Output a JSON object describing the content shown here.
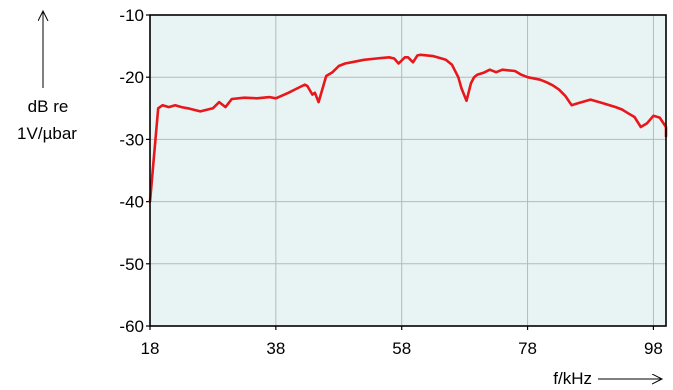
{
  "chart_data": {
    "type": "line",
    "ylabel_line1": "dB re",
    "ylabel_line2": "1V/µbar",
    "xlabel": "f/kHz",
    "xlim": [
      18,
      100
    ],
    "ylim": [
      -60,
      -10
    ],
    "x_ticks": [
      18,
      38,
      58,
      78,
      98
    ],
    "y_ticks": [
      -10,
      -20,
      -30,
      -40,
      -50,
      -60
    ],
    "grid": true,
    "colors": {
      "plot_bg": "#e8f4f4",
      "grid": "#b8b8b8",
      "line": "#e8171b",
      "axis": "#000000"
    },
    "series": [
      {
        "x": [
          18,
          19.3,
          20,
          21,
          22,
          23,
          24,
          26,
          28,
          29,
          30,
          31,
          33,
          35,
          37,
          38,
          40,
          41,
          42,
          42.6,
          43,
          43.8,
          44.2,
          44.8,
          46,
          47,
          48,
          49,
          50,
          52,
          54,
          56,
          56.8,
          57.5,
          58.5,
          59,
          59.8,
          60.5,
          61,
          63,
          64,
          65,
          66,
          67,
          67.5,
          68.3,
          69,
          69.5,
          70,
          71,
          72,
          73,
          74,
          76,
          77,
          78,
          80,
          81,
          82,
          83,
          84,
          85,
          86,
          88,
          90,
          92,
          93,
          94,
          95,
          96,
          97,
          98,
          99,
          100,
          100.5
        ],
        "y": [
          -40,
          -25,
          -24.5,
          -24.8,
          -24.5,
          -24.8,
          -25,
          -25.5,
          -25,
          -24,
          -24.8,
          -23.5,
          -23.3,
          -23.4,
          -23.2,
          -23.4,
          -22.5,
          -22,
          -21.5,
          -21.2,
          -21.4,
          -22.8,
          -22.5,
          -24,
          -19.8,
          -19.2,
          -18.2,
          -17.8,
          -17.6,
          -17.2,
          -17,
          -16.8,
          -17,
          -17.8,
          -16.8,
          -16.8,
          -17.6,
          -16.5,
          -16.4,
          -16.6,
          -16.9,
          -17.2,
          -18,
          -20,
          -21.8,
          -23.8,
          -21,
          -20,
          -19.6,
          -19.3,
          -18.8,
          -19.2,
          -18.8,
          -19,
          -19.6,
          -20,
          -20.4,
          -20.8,
          -21.3,
          -22,
          -23,
          -24.5,
          -24.2,
          -23.6,
          -24.2,
          -24.8,
          -25.2,
          -25.8,
          -26.4,
          -28,
          -27.4,
          -26.2,
          -26.5,
          -28,
          -29.5
        ]
      }
    ]
  }
}
